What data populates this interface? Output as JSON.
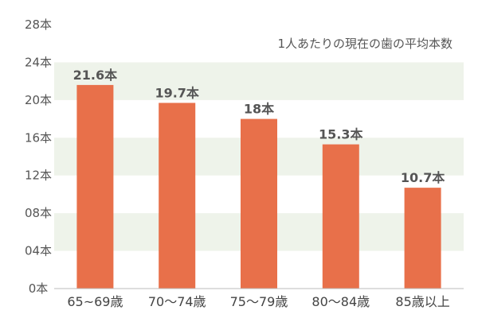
{
  "chart_data": {
    "type": "bar",
    "title": "1人あたりの現在の歯の平均本数",
    "categories": [
      "65~69歳",
      "70〜74歳",
      "75〜79歳",
      "80〜84歳",
      "85歳以上"
    ],
    "values": [
      21.6,
      19.7,
      18,
      15.3,
      10.7
    ],
    "value_labels": [
      "21.6本",
      "19.7本",
      "18本",
      "15.3本",
      "10.7本"
    ],
    "y_ticks": [
      0,
      4,
      8,
      12,
      16,
      20,
      24,
      28
    ],
    "y_tick_labels": [
      "0本",
      "04本",
      "08本",
      "12本",
      "16本",
      "20本",
      "24本",
      "28本"
    ],
    "ylim": [
      0,
      28
    ],
    "grid": "alternating horizontal bands",
    "colors": {
      "bar": "#e8704a",
      "band": "#eef3ea",
      "axis": "#bbbbbb"
    }
  }
}
